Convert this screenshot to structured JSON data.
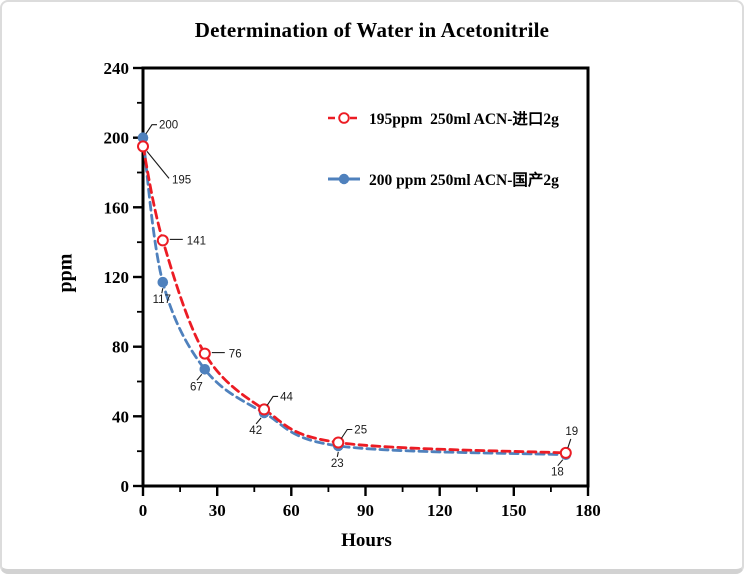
{
  "chart_data": {
    "type": "line",
    "title": "Determination of Water in Acetonitrile",
    "xlabel": "Hours",
    "ylabel": "ppm",
    "xlim": [
      0,
      180
    ],
    "ylim": [
      0,
      240
    ],
    "x_major_step": 30,
    "x_minor_step": 15,
    "y_major_step": 40,
    "y_minor_step": 20,
    "grid": false,
    "legend_position": "inside-top-right",
    "x_hours": [
      0,
      8,
      25,
      49,
      79,
      171
    ],
    "series": [
      {
        "name": "195ppm  250ml ACN-进口2g",
        "color": "#ec1c24",
        "marker": "open-circle",
        "line_style": "dashed",
        "values": [
          195,
          141,
          76,
          44,
          25,
          19
        ],
        "label_placements": [
          "below-right",
          "right",
          "right",
          "above-right",
          "above-right",
          "above"
        ]
      },
      {
        "name": "200 ppm 250ml ACN-国产2g",
        "color": "#4f81bd",
        "marker": "filled-circle",
        "line_style": "dashed",
        "values": [
          200,
          117,
          67,
          42,
          23,
          18
        ],
        "label_placements": [
          "above-right",
          "below",
          "below-left",
          "below-left",
          "below",
          "below-left"
        ]
      }
    ],
    "colors": {
      "axis": "#000000",
      "tick_text": "#000000",
      "data_label_text": "#1a1a1a",
      "leader_line": "#1a1a1a",
      "card_border": "#dcdcdc"
    }
  }
}
